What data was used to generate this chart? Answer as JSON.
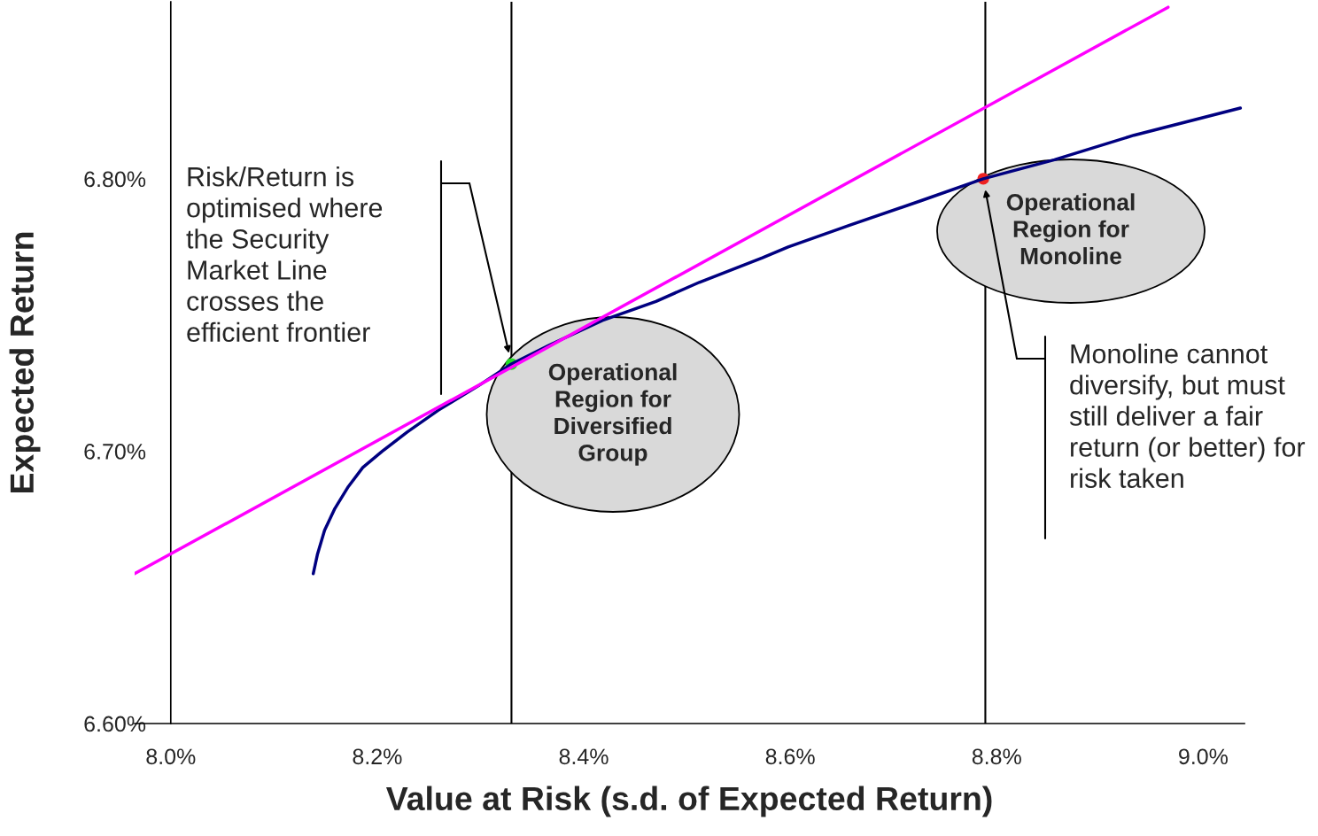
{
  "chart_data": {
    "type": "line",
    "xlabel": "Value at Risk (s.d. of Expected Return)",
    "ylabel": "Expected Return",
    "xlim": [
      7.965,
      9.04
    ],
    "ylim": [
      6.6,
      6.865
    ],
    "xticks": [
      {
        "value": 8.0,
        "label": "8.0%"
      },
      {
        "value": 8.2,
        "label": "8.2%"
      },
      {
        "value": 8.4,
        "label": "8.4%"
      },
      {
        "value": 8.6,
        "label": "8.6%"
      },
      {
        "value": 8.8,
        "label": "8.8%"
      },
      {
        "value": 9.0,
        "label": "9.0%"
      }
    ],
    "yticks": [
      {
        "value": 6.6,
        "label": "6.60%"
      },
      {
        "value": 6.7,
        "label": "6.70%"
      },
      {
        "value": 6.8,
        "label": "6.80%"
      }
    ],
    "grid": false,
    "legend": false,
    "marker": "none",
    "line_style": "solid",
    "series": [
      {
        "color": "#000080",
        "x": [
          8.138,
          8.142,
          8.149,
          8.159,
          8.172,
          8.186,
          8.205,
          8.229,
          8.259,
          8.298,
          8.33,
          8.367,
          8.418,
          8.47,
          8.512,
          8.573,
          8.598,
          8.658,
          8.727,
          8.787,
          8.856,
          8.933,
          9.036
        ],
        "values": [
          6.655,
          6.662,
          6.671,
          6.679,
          6.687,
          6.694,
          6.7,
          6.707,
          6.715,
          6.724,
          6.732,
          6.739,
          6.748,
          6.755,
          6.762,
          6.771,
          6.775,
          6.783,
          6.792,
          6.8,
          6.807,
          6.816,
          6.826
        ]
      },
      {
        "color": "#ff00ff",
        "x": [
          7.965,
          8.966
        ],
        "values": [
          6.655,
          6.863
        ]
      },
      {
        "type": "scatter",
        "marker": "circle",
        "colors": [
          "#22dd22",
          "#ee2222"
        ],
        "x": [
          8.33,
          8.787
        ],
        "values": [
          6.732,
          6.8
        ]
      }
    ],
    "ref_lines": [
      {
        "axis": "x",
        "value": 8.33,
        "color": "#000000"
      },
      {
        "axis": "x",
        "value": 8.789,
        "color": "#000000"
      }
    ],
    "annotations": [
      "Operational\nRegion for\nDiversified\nGroup",
      "Operational\nRegion for\nMonoline",
      "Risk/Return is\noptimised where\nthe Security\nMarket Line\ncrosses the\nefficient frontier",
      "Monoline cannot\ndiversify, but must\nstill deliver a fair\nreturn (or better) for\nrisk taken"
    ]
  }
}
